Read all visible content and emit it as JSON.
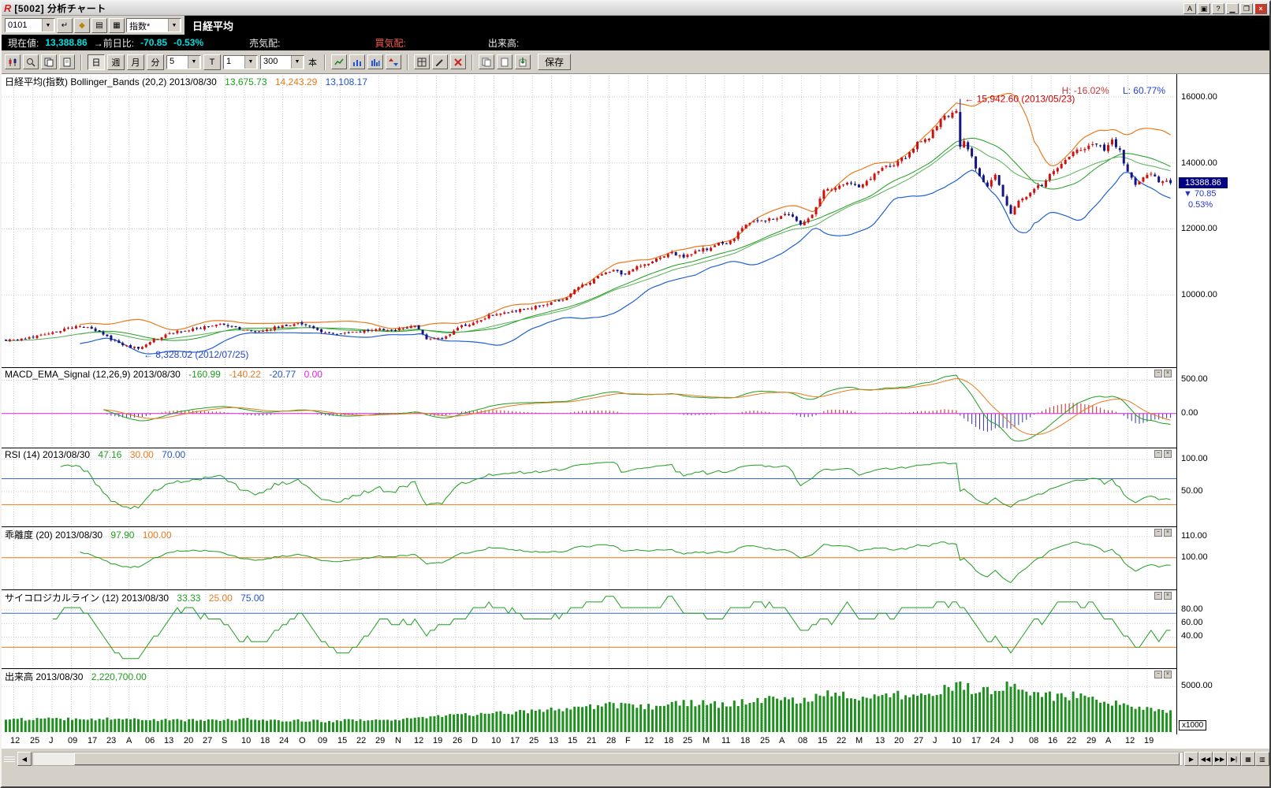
{
  "window": {
    "title": "[5002] 分析チャート",
    "logo": "R",
    "buttons": {
      "a": "A",
      "help": "?"
    }
  },
  "toolbar1": {
    "code": "0101",
    "category": "指数*",
    "symbol_name": "日経平均"
  },
  "info_row": {
    "price_label": "現在値:",
    "price": "13,388.86",
    "change_label": "→前日比:",
    "change": "-70.85",
    "change_pct": "-0.53%",
    "ask_label": "売気配:",
    "bid_label": "買気配:",
    "volume_label": "出来高:"
  },
  "toolbar2": {
    "day": "日",
    "week": "週",
    "month": "月",
    "minute": "分",
    "minute_value": "5",
    "t": "T",
    "tick_value": "1",
    "bar_count": "300",
    "bars_unit": "本",
    "save": "保存"
  },
  "panels": {
    "main": {
      "title": "日経平均(指数) Bollinger_Bands (20,2) 2013/08/30",
      "v1": "13,675.73",
      "v2": "14,243.29",
      "v3": "13,108.17",
      "high_label": "H: -16.02%",
      "low_label": "L: 60.77%",
      "scale_labels": [
        "16000.00",
        "14000.00",
        "12000.00",
        "10000.00"
      ],
      "badge_price": "13388.86",
      "badge_change": "▼ 70.85",
      "badge_pct": "0.53%"
    },
    "macd": {
      "title": "MACD_EMA_Signal (12,26,9) 2013/08/30",
      "v1": "-160.99",
      "v2": "-140.22",
      "v3": "-20.77",
      "v4": "0.00",
      "scale_labels": [
        "500.00",
        "0.00"
      ]
    },
    "rsi": {
      "title": "RSI (14) 2013/08/30",
      "v1": "47.16",
      "v2": "30.00",
      "v3": "70.00",
      "scale_labels": [
        "100.00",
        "50.00"
      ]
    },
    "kairi": {
      "title": "乖離度 (20) 2013/08/30",
      "v1": "97.90",
      "v2": "100.00",
      "scale_labels": [
        "110.00",
        "100.00"
      ]
    },
    "psych": {
      "title": "サイコロジカルライン (12) 2013/08/30",
      "v1": "33.33",
      "v2": "25.00",
      "v3": "75.00",
      "scale_labels": [
        "80.00",
        "60.00",
        "40.00"
      ]
    },
    "volume": {
      "title": "出来高 2013/08/30",
      "v1": "2,220,700.00",
      "scale_labels": [
        "5000.00"
      ],
      "unit": "x1000"
    }
  },
  "chart_data": {
    "type": "candlestick",
    "bars": 300,
    "period": "daily",
    "date_range": "2012/06 - 2013/08/30",
    "x_labels": [
      "12",
      "25",
      "J",
      "09",
      "17",
      "23",
      "A",
      "06",
      "13",
      "20",
      "27",
      "S",
      "10",
      "18",
      "24",
      "O",
      "09",
      "15",
      "22",
      "29",
      "N",
      "12",
      "19",
      "26",
      "D",
      "10",
      "17",
      "25",
      "13",
      "15",
      "21",
      "28",
      "F",
      "12",
      "18",
      "25",
      "M",
      "11",
      "18",
      "25",
      "A",
      "08",
      "15",
      "22",
      "M",
      "13",
      "20",
      "27",
      "J",
      "10",
      "17",
      "24",
      "J",
      "08",
      "16",
      "22",
      "29",
      "A",
      "12",
      "19"
    ],
    "price": {
      "last_close": 13388.86,
      "prev_close": 13459.71,
      "change": -70.85,
      "change_pct": -0.53,
      "scale_range": [
        7950,
        16550
      ],
      "high_annotation": {
        "text": "← 15,942.60 (2013/05/23)",
        "value": 15942.6,
        "bar": 245
      },
      "low_annotation": {
        "text": "← 8,328.02 (2012/07/25)",
        "value": 8328.02,
        "bar": 34
      },
      "bollinger": {
        "period": 20,
        "sigma": 2,
        "mid": 13675.73,
        "upper": 14243.29,
        "lower": 13108.17
      },
      "close_anchors": [
        [
          0,
          8640
        ],
        [
          6,
          8690
        ],
        [
          12,
          8840
        ],
        [
          18,
          9050
        ],
        [
          22,
          9000
        ],
        [
          27,
          8650
        ],
        [
          31,
          8450
        ],
        [
          34,
          8370
        ],
        [
          38,
          8650
        ],
        [
          44,
          8890
        ],
        [
          50,
          8980
        ],
        [
          55,
          9150
        ],
        [
          60,
          8950
        ],
        [
          65,
          8870
        ],
        [
          70,
          9050
        ],
        [
          75,
          9140
        ],
        [
          80,
          8930
        ],
        [
          85,
          8790
        ],
        [
          90,
          8870
        ],
        [
          95,
          8970
        ],
        [
          100,
          8930
        ],
        [
          105,
          9050
        ],
        [
          108,
          8680
        ],
        [
          112,
          8660
        ],
        [
          116,
          9020
        ],
        [
          120,
          9150
        ],
        [
          124,
          9370
        ],
        [
          128,
          9450
        ],
        [
          132,
          9550
        ],
        [
          136,
          9650
        ],
        [
          140,
          9740
        ],
        [
          144,
          9940
        ],
        [
          147,
          10230
        ],
        [
          150,
          10400
        ],
        [
          153,
          10600
        ],
        [
          156,
          10750
        ],
        [
          159,
          10600
        ],
        [
          162,
          10860
        ],
        [
          165,
          10930
        ],
        [
          168,
          11130
        ],
        [
          171,
          11260
        ],
        [
          174,
          11150
        ],
        [
          177,
          11310
        ],
        [
          180,
          11400
        ],
        [
          183,
          11560
        ],
        [
          186,
          11600
        ],
        [
          189,
          11990
        ],
        [
          192,
          12280
        ],
        [
          195,
          12240
        ],
        [
          198,
          12340
        ],
        [
          201,
          12470
        ],
        [
          204,
          12100
        ],
        [
          207,
          12400
        ],
        [
          210,
          13200
        ],
        [
          213,
          13190
        ],
        [
          216,
          13400
        ],
        [
          219,
          13220
        ],
        [
          222,
          13560
        ],
        [
          225,
          13880
        ],
        [
          228,
          13980
        ],
        [
          231,
          14180
        ],
        [
          234,
          14600
        ],
        [
          237,
          14780
        ],
        [
          240,
          15360
        ],
        [
          242,
          15380
        ],
        [
          244,
          15630
        ],
        [
          245,
          14480
        ],
        [
          246,
          14610
        ],
        [
          248,
          14160
        ],
        [
          250,
          13590
        ],
        [
          252,
          13260
        ],
        [
          254,
          13640
        ],
        [
          256,
          13010
        ],
        [
          258,
          12450
        ],
        [
          260,
          12900
        ],
        [
          262,
          13010
        ],
        [
          264,
          13260
        ],
        [
          266,
          13320
        ],
        [
          268,
          13710
        ],
        [
          270,
          13870
        ],
        [
          272,
          14100
        ],
        [
          274,
          14310
        ],
        [
          276,
          14420
        ],
        [
          278,
          14510
        ],
        [
          280,
          14580
        ],
        [
          282,
          14410
        ],
        [
          284,
          14660
        ],
        [
          286,
          14340
        ],
        [
          288,
          13720
        ],
        [
          290,
          13340
        ],
        [
          292,
          13520
        ],
        [
          294,
          13660
        ],
        [
          296,
          13460
        ],
        [
          298,
          13459.71
        ],
        [
          299,
          13388.86
        ]
      ]
    },
    "macd": {
      "fast": 12,
      "slow": 26,
      "signal": 9,
      "macd_value": -160.99,
      "signal_value": -140.22,
      "osci": -20.77,
      "zero": 0.0
    },
    "rsi": {
      "period": 14,
      "value": 47.16,
      "lower": 30.0,
      "upper": 70.0
    },
    "kairi": {
      "period": 20,
      "value": 97.9,
      "base": 100.0
    },
    "psych": {
      "period": 12,
      "value": 33.33,
      "lower": 25.0,
      "upper": 75.0
    },
    "volume": {
      "last": 2220700.0,
      "unit_scale": 1000,
      "anchors": [
        [
          0,
          1400
        ],
        [
          20,
          1500
        ],
        [
          40,
          1300
        ],
        [
          60,
          1400
        ],
        [
          80,
          1200
        ],
        [
          100,
          1400
        ],
        [
          110,
          1800
        ],
        [
          120,
          2000
        ],
        [
          130,
          2200
        ],
        [
          140,
          2400
        ],
        [
          148,
          2800
        ],
        [
          156,
          3000
        ],
        [
          165,
          2800
        ],
        [
          175,
          3200
        ],
        [
          185,
          3000
        ],
        [
          195,
          3600
        ],
        [
          205,
          3400
        ],
        [
          212,
          4200
        ],
        [
          220,
          3800
        ],
        [
          228,
          4000
        ],
        [
          235,
          4400
        ],
        [
          240,
          4600
        ],
        [
          245,
          5200
        ],
        [
          248,
          4800
        ],
        [
          252,
          4400
        ],
        [
          256,
          5000
        ],
        [
          258,
          5600
        ],
        [
          262,
          4600
        ],
        [
          266,
          4200
        ],
        [
          270,
          3800
        ],
        [
          274,
          4000
        ],
        [
          278,
          3600
        ],
        [
          282,
          3400
        ],
        [
          286,
          3000
        ],
        [
          290,
          2600
        ],
        [
          294,
          2400
        ],
        [
          299,
          2221
        ]
      ]
    }
  }
}
